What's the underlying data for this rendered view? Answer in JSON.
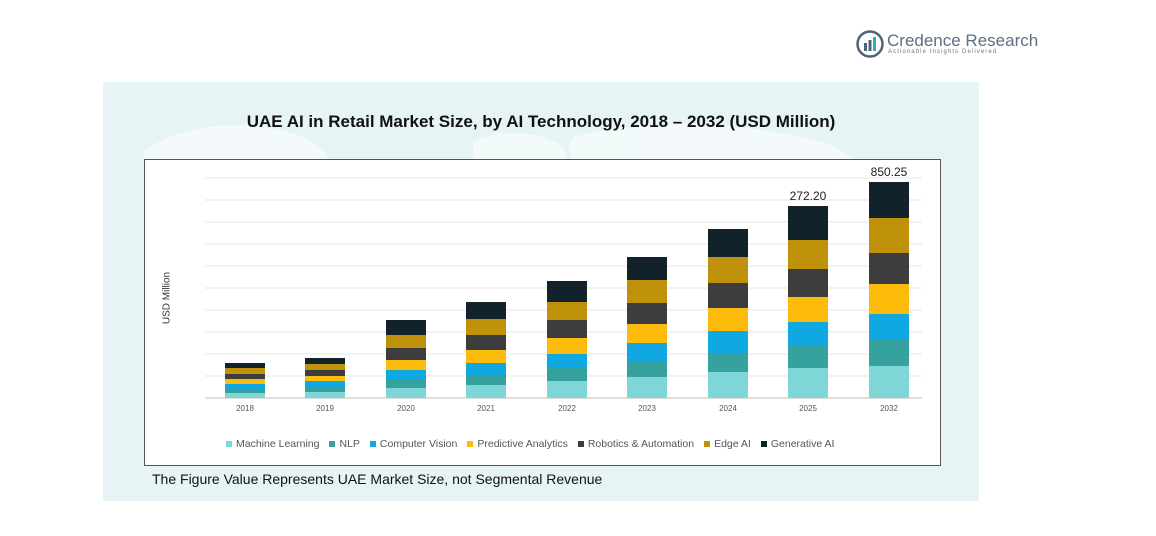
{
  "brand": {
    "name": "Credence Research",
    "tagline": "Actionable Insights Delivered"
  },
  "footnote": "The Figure Value Represents UAE Market Size, not Segmental Revenue",
  "chart_data": {
    "type": "bar",
    "stacked": true,
    "title": "UAE AI in Retail Market Size, by AI Technology, 2018 – 2032 (USD Million)",
    "xlabel": "",
    "ylabel": "USD Million",
    "grid": true,
    "legend_position": "bottom",
    "categories": [
      "2018",
      "2019",
      "2020",
      "2021",
      "2022",
      "2023",
      "2024",
      "2025",
      "2032"
    ],
    "series": [
      {
        "name": "Machine Learning",
        "color": "#7fd6d6",
        "values": [
          5,
          6,
          10,
          13,
          17,
          21,
          26,
          30,
          32
        ]
      },
      {
        "name": "NLP",
        "color": "#35a29f",
        "values": [
          4,
          5,
          8,
          10,
          13,
          16,
          19,
          22,
          26
        ]
      },
      {
        "name": "Computer Vision",
        "color": "#0fa8e0",
        "values": [
          5,
          6,
          10,
          12,
          14,
          18,
          22,
          24,
          26
        ]
      },
      {
        "name": "Predictive Analytics",
        "color": "#fdbc0c",
        "values": [
          5,
          5,
          10,
          13,
          16,
          19,
          23,
          25,
          30
        ]
      },
      {
        "name": "Robotics & Automation",
        "color": "#3d3d3d",
        "values": [
          5,
          6,
          12,
          15,
          18,
          21,
          25,
          28,
          31
        ]
      },
      {
        "name": "Edge AI",
        "color": "#c0910a",
        "values": [
          6,
          6,
          13,
          16,
          18,
          23,
          26,
          29,
          35
        ]
      },
      {
        "name": "Generative AI",
        "color": "#12222b",
        "values": [
          5,
          6,
          15,
          17,
          21,
          23,
          28,
          34,
          36
        ]
      }
    ],
    "data_labels": [
      {
        "category": "2025",
        "text": "272.20"
      },
      {
        "category": "2032",
        "text": "850.25"
      }
    ],
    "ylim": [
      0,
      220
    ]
  }
}
